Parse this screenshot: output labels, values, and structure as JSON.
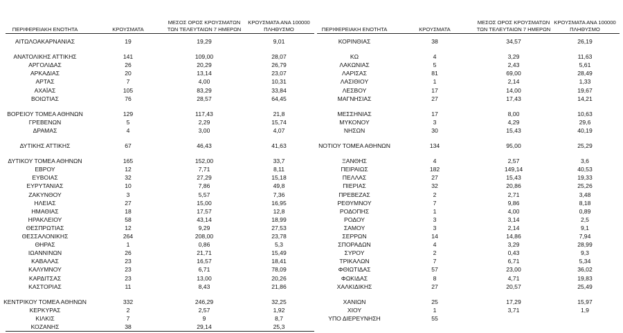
{
  "left": {
    "headers": [
      "ΠΕΡΙΦΕΡΕΙΑΚΗ ΕΝΟΤΗΤΑ",
      "ΚΡΟΥΣΜΑΤΑ",
      "ΜΕΣΟΣ ΟΡΟΣ ΚΡΟΥΣΜΑΤΩΝ ΤΩΝ ΤΕΛΕΥΤΑΙΩΝ 7 ΗΜΕΡΩΝ",
      "ΚΡΟΥΣΜΑΤΑ ΑΝΑ 100000 ΠΛΗΘΥΣΜΟ"
    ],
    "groups": [
      {
        "rows": [
          [
            "ΑΙΤΩΛΟΑΚΑΡΝΑΝΙΑΣ",
            "19",
            "19,29",
            "9,01"
          ]
        ]
      },
      {
        "rows": [
          [
            "ΑΝΑΤΟΛΙΚΗΣ ΑΤΤΙΚΗΣ",
            "141",
            "109,00",
            "28,07"
          ],
          [
            "ΑΡΓΟΛΙΔΑΣ",
            "26",
            "20,29",
            "26,79"
          ],
          [
            "ΑΡΚΑΔΙΑΣ",
            "20",
            "13,14",
            "23,07"
          ],
          [
            "ΑΡΤΑΣ",
            "7",
            "4,00",
            "10,31"
          ],
          [
            "ΑΧΑΪΑΣ",
            "105",
            "83,29",
            "33,84"
          ],
          [
            "ΒΟΙΩΤΙΑΣ",
            "76",
            "28,57",
            "64,45"
          ]
        ]
      },
      {
        "rows": [
          [
            "ΒΟΡΕΙΟΥ ΤΟΜΕΑ ΑΘΗΝΩΝ",
            "129",
            "117,43",
            "21,8"
          ],
          [
            "ΓΡΕΒΕΝΩΝ",
            "5",
            "2,29",
            "15,74"
          ],
          [
            "ΔΡΑΜΑΣ",
            "4",
            "3,00",
            "4,07"
          ]
        ]
      },
      {
        "rows": [
          [
            "ΔΥΤΙΚΗΣ ΑΤΤΙΚΗΣ",
            "67",
            "46,43",
            "41,63"
          ]
        ]
      },
      {
        "rows": [
          [
            "ΔΥΤΙΚΟΥ ΤΟΜΕΑ ΑΘΗΝΩΝ",
            "165",
            "152,00",
            "33,7"
          ],
          [
            "ΕΒΡΟΥ",
            "12",
            "7,71",
            "8,11"
          ],
          [
            "ΕΥΒΟΙΑΣ",
            "32",
            "27,29",
            "15,18"
          ],
          [
            "ΕΥΡΥΤΑΝΙΑΣ",
            "10",
            "7,86",
            "49,8"
          ],
          [
            "ΖΑΚΥΝΘΟΥ",
            "3",
            "5,57",
            "7,36"
          ],
          [
            "ΗΛΕΙΑΣ",
            "27",
            "15,00",
            "16,95"
          ],
          [
            "ΗΜΑΘΙΑΣ",
            "18",
            "17,57",
            "12,8"
          ],
          [
            "ΗΡΑΚΛΕΙΟΥ",
            "58",
            "43,14",
            "18,99"
          ],
          [
            "ΘΕΣΠΡΩΤΙΑΣ",
            "12",
            "9,29",
            "27,53"
          ],
          [
            "ΘΕΣΣΑΛΟΝΙΚΗΣ",
            "264",
            "208,00",
            "23,78"
          ],
          [
            "ΘΗΡΑΣ",
            "1",
            "0,86",
            "5,3"
          ],
          [
            "ΙΩΑΝΝΙΝΩΝ",
            "26",
            "21,71",
            "15,49"
          ],
          [
            "ΚΑΒΑΛΑΣ",
            "23",
            "16,57",
            "18,41"
          ],
          [
            "ΚΑΛΥΜΝΟΥ",
            "23",
            "6,71",
            "78,09"
          ],
          [
            "ΚΑΡΔΙΤΣΑΣ",
            "23",
            "13,00",
            "20,26"
          ],
          [
            "ΚΑΣΤΟΡΙΑΣ",
            "11",
            "8,43",
            "21,86"
          ]
        ]
      },
      {
        "rows": [
          [
            "ΚΕΝΤΡΙΚΟΥ ΤΟΜΕΑ ΑΘΗΝΩΝ",
            "332",
            "246,29",
            "32,25"
          ],
          [
            "ΚΕΡΚΥΡΑΣ",
            "2",
            "2,57",
            "1,92"
          ],
          [
            "ΚΙΛΚΙΣ",
            "7",
            "9",
            "8,7"
          ],
          [
            "ΚΟΖΑΝΗΣ",
            "38",
            "29,14",
            "25,3"
          ]
        ]
      }
    ]
  },
  "right": {
    "headers": [
      "ΠΕΡΙΦΕΡΕΙΑΚΗ ΕΝΟΤΗΤΑ",
      "ΚΡΟΥΣΜΑΤΑ",
      "ΜΕΣΟΣ ΟΡΟΣ ΚΡΟΥΣΜΑΤΩΝ ΤΩΝ ΤΕΛΕΥΤΑΙΩΝ 7 ΗΜΕΡΩΝ",
      "ΚΡΟΥΣΜΑΤΑ ΑΝΑ 100000 ΠΛΗΘΥΣΜΟ"
    ],
    "groups": [
      {
        "rows": [
          [
            "ΚΟΡΙΝΘΙΑΣ",
            "38",
            "34,57",
            "26,19"
          ]
        ]
      },
      {
        "rows": [
          [
            "ΚΩ",
            "4",
            "3,29",
            "11,63"
          ],
          [
            "ΛΑΚΩΝΙΑΣ",
            "5",
            "2,43",
            "5,61"
          ],
          [
            "ΛΑΡΙΣΑΣ",
            "81",
            "69,00",
            "28,49"
          ],
          [
            "ΛΑΣΙΘΙΟΥ",
            "1",
            "2,14",
            "1,33"
          ],
          [
            "ΛΕΣΒΟΥ",
            "17",
            "14,00",
            "19,67"
          ],
          [
            "ΜΑΓΝΗΣΙΑΣ",
            "27",
            "17,43",
            "14,21"
          ]
        ]
      },
      {
        "rows": [
          [
            "ΜΕΣΣΗΝΙΑΣ",
            "17",
            "8,00",
            "10,63"
          ],
          [
            "ΜΥΚΟΝΟΥ",
            "3",
            "4,29",
            "29,6"
          ],
          [
            "ΝΗΣΩΝ",
            "30",
            "15,43",
            "40,19"
          ]
        ]
      },
      {
        "rows": [
          [
            "ΝΟΤΙΟΥ ΤΟΜΕΑ ΑΘΗΝΩΝ",
            "134",
            "95,00",
            "25,29"
          ]
        ]
      },
      {
        "rows": [
          [
            "ΞΑΝΘΗΣ",
            "4",
            "2,57",
            "3,6"
          ],
          [
            "ΠΕΙΡΑΙΩΣ",
            "182",
            "149,14",
            "40,53"
          ],
          [
            "ΠΕΛΛΑΣ",
            "27",
            "15,43",
            "19,33"
          ],
          [
            "ΠΙΕΡΙΑΣ",
            "32",
            "20,86",
            "25,26"
          ],
          [
            "ΠΡΕΒΕΖΑΣ",
            "2",
            "2,71",
            "3,48"
          ],
          [
            "ΡΕΘΥΜΝΟΥ",
            "7",
            "9,86",
            "8,18"
          ],
          [
            "ΡΟΔΟΠΗΣ",
            "1",
            "4,00",
            "0,89"
          ],
          [
            "ΡΟΔΟΥ",
            "3",
            "3,14",
            "2,5"
          ],
          [
            "ΣΑΜΟΥ",
            "3",
            "2,14",
            "9,1"
          ],
          [
            "ΣΕΡΡΩΝ",
            "14",
            "14,86",
            "7,94"
          ],
          [
            "ΣΠΟΡΑΔΩΝ",
            "4",
            "3,29",
            "28,99"
          ],
          [
            "ΣΥΡΟΥ",
            "2",
            "0,43",
            "9,3"
          ],
          [
            "ΤΡΙΚΑΛΩΝ",
            "7",
            "6,71",
            "5,34"
          ],
          [
            "ΦΘΙΩΤΙΔΑΣ",
            "57",
            "23,00",
            "36,02"
          ],
          [
            "ΦΩΚΙΔΑΣ",
            "8",
            "4,71",
            "19,83"
          ],
          [
            "ΧΑΛΚΙΔΙΚΗΣ",
            "27",
            "20,57",
            "25,49"
          ]
        ]
      },
      {
        "rows": [
          [
            "ΧΑΝΙΩΝ",
            "25",
            "17,29",
            "15,97"
          ],
          [
            "ΧΙΟΥ",
            "1",
            "3,71",
            "1,9"
          ],
          [
            "ΥΠΟ ΔΙΕΡΕΥΝΗΣΗ",
            "55"
          ]
        ]
      }
    ]
  }
}
